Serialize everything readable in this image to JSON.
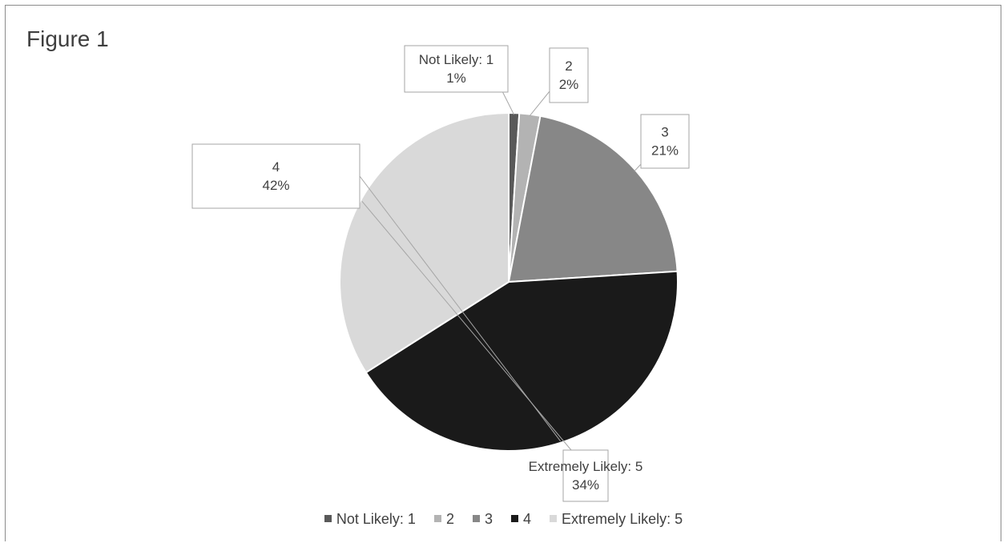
{
  "figure": {
    "title": "Figure 1"
  },
  "chart_data": {
    "type": "pie",
    "title": "",
    "categories": [
      "Not Likely: 1",
      "2",
      "3",
      "4",
      "Extremely Likely: 5"
    ],
    "values": [
      1,
      2,
      21,
      42,
      34
    ],
    "labels": [
      {
        "name": "Not Likely: 1",
        "percent": "1%"
      },
      {
        "name": "2",
        "percent": "2%"
      },
      {
        "name": "3",
        "percent": "21%"
      },
      {
        "name": "4",
        "percent": "42%"
      },
      {
        "name": "Extremely Likely: 5",
        "percent": "34%"
      }
    ],
    "colors": [
      "#595959",
      "#b3b3b3",
      "#878787",
      "#1a1a1a",
      "#d9d9d9"
    ],
    "legend": "bottom",
    "start_angle_deg": 0,
    "direction": "clockwise"
  }
}
